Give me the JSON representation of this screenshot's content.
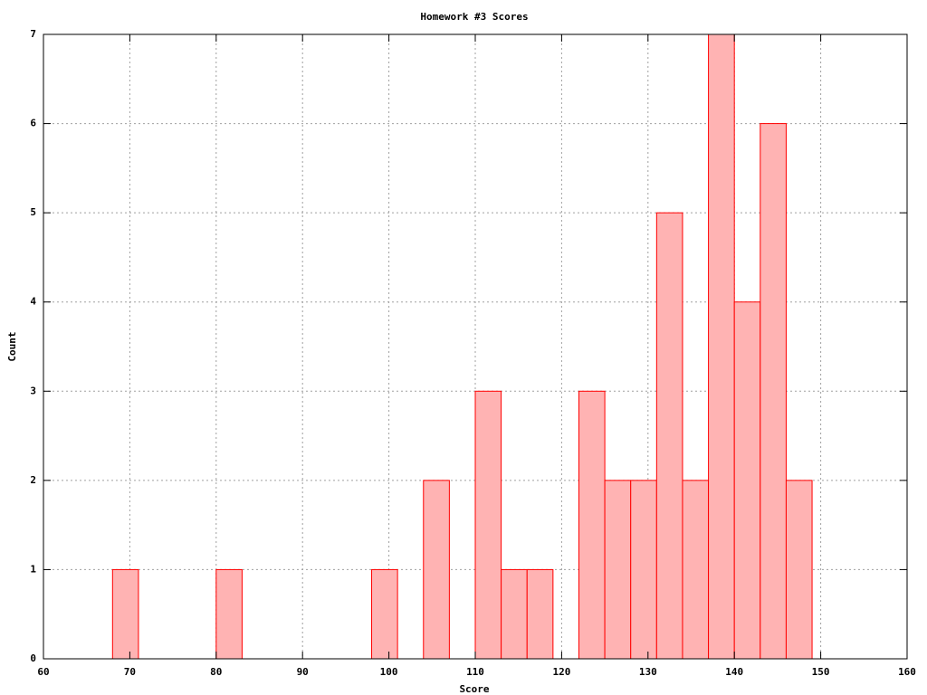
{
  "chart_data": {
    "type": "histogram",
    "title": "Homework #3 Scores",
    "x_label": "Score",
    "y_label": "Count",
    "bins": [
      68,
      71,
      74,
      77,
      80,
      83,
      86,
      89,
      92,
      95,
      98,
      101,
      104,
      107,
      110,
      113,
      116,
      119,
      122,
      125,
      128,
      131,
      134,
      137,
      140,
      143,
      146,
      149
    ],
    "values": [
      1,
      0,
      0,
      0,
      1,
      0,
      0,
      0,
      0,
      0,
      1,
      0,
      2,
      0,
      3,
      1,
      1,
      0,
      3,
      2,
      2,
      5,
      2,
      7,
      4,
      6,
      2
    ],
    "color": "#ffb3b3",
    "edge_color": "#ff0000",
    "xlim": [
      60,
      160
    ],
    "xticks": [
      60,
      70,
      80,
      90,
      100,
      110,
      120,
      130,
      140,
      150,
      160
    ],
    "ylim": [
      0,
      7
    ],
    "yticks": [
      0,
      1,
      2,
      3,
      4,
      5,
      6,
      7
    ],
    "grid": true
  }
}
